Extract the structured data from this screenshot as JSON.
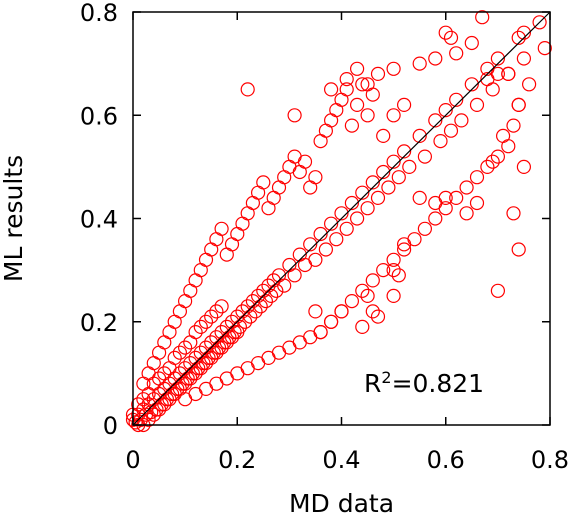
{
  "chart_data": {
    "type": "scatter",
    "xlabel": "MD data",
    "ylabel": "ML results",
    "xlim": [
      0,
      0.8
    ],
    "ylim": [
      0,
      0.8
    ],
    "xticks": [
      "0",
      "0.2",
      "0.4",
      "0.6",
      "0.8"
    ],
    "yticks": [
      "0",
      "0.2",
      "0.4",
      "0.6",
      "0.8"
    ],
    "xtick_values": [
      0,
      0.2,
      0.4,
      0.6,
      0.8
    ],
    "ytick_values": [
      0,
      0.2,
      0.4,
      0.6,
      0.8
    ],
    "annotation": {
      "prefix": "R",
      "superscript": "2",
      "suffix": "=0.821"
    },
    "reference_line": {
      "from": [
        0,
        0
      ],
      "to": [
        0.8,
        0.8
      ],
      "color": "#000000"
    },
    "marker": {
      "shape": "open-circle",
      "color": "#ff0000"
    },
    "grid": false,
    "series": [
      {
        "points": [
          [
            0.01,
            0.02
          ],
          [
            0.015,
            0.01
          ],
          [
            0.02,
            0.03
          ],
          [
            0.025,
            0.02
          ],
          [
            0.03,
            0.04
          ],
          [
            0.035,
            0.025
          ],
          [
            0.04,
            0.05
          ],
          [
            0.045,
            0.03
          ],
          [
            0.05,
            0.06
          ],
          [
            0.055,
            0.04
          ],
          [
            0.06,
            0.07
          ],
          [
            0.065,
            0.05
          ],
          [
            0.07,
            0.08
          ],
          [
            0.075,
            0.06
          ],
          [
            0.08,
            0.09
          ],
          [
            0.085,
            0.07
          ],
          [
            0.09,
            0.1
          ],
          [
            0.095,
            0.08
          ],
          [
            0.1,
            0.11
          ],
          [
            0.105,
            0.09
          ],
          [
            0.11,
            0.12
          ],
          [
            0.115,
            0.1
          ],
          [
            0.12,
            0.13
          ],
          [
            0.125,
            0.11
          ],
          [
            0.13,
            0.14
          ],
          [
            0.135,
            0.12
          ],
          [
            0.14,
            0.15
          ],
          [
            0.145,
            0.13
          ],
          [
            0.15,
            0.16
          ],
          [
            0.155,
            0.14
          ],
          [
            0.16,
            0.17
          ],
          [
            0.165,
            0.15
          ],
          [
            0.17,
            0.18
          ],
          [
            0.175,
            0.16
          ],
          [
            0.18,
            0.19
          ],
          [
            0.185,
            0.17
          ],
          [
            0.19,
            0.2
          ],
          [
            0.195,
            0.18
          ],
          [
            0.2,
            0.21
          ],
          [
            0.205,
            0.19
          ],
          [
            0.21,
            0.22
          ],
          [
            0.215,
            0.2
          ],
          [
            0.22,
            0.23
          ],
          [
            0.225,
            0.21
          ],
          [
            0.23,
            0.24
          ],
          [
            0.235,
            0.22
          ],
          [
            0.24,
            0.25
          ],
          [
            0.245,
            0.23
          ],
          [
            0.25,
            0.26
          ],
          [
            0.255,
            0.24
          ],
          [
            0.26,
            0.27
          ],
          [
            0.265,
            0.25
          ],
          [
            0.27,
            0.28
          ],
          [
            0.275,
            0.26
          ],
          [
            0.28,
            0.29
          ],
          [
            0.29,
            0.27
          ],
          [
            0.3,
            0.31
          ],
          [
            0.31,
            0.29
          ],
          [
            0.32,
            0.33
          ],
          [
            0.33,
            0.31
          ],
          [
            0.34,
            0.35
          ],
          [
            0.35,
            0.32
          ],
          [
            0.36,
            0.37
          ],
          [
            0.37,
            0.34
          ],
          [
            0.38,
            0.39
          ],
          [
            0.39,
            0.36
          ],
          [
            0.4,
            0.41
          ],
          [
            0.41,
            0.38
          ],
          [
            0.42,
            0.43
          ],
          [
            0.43,
            0.4
          ],
          [
            0.44,
            0.45
          ],
          [
            0.45,
            0.42
          ],
          [
            0.46,
            0.47
          ],
          [
            0.47,
            0.44
          ],
          [
            0.48,
            0.49
          ],
          [
            0.49,
            0.46
          ],
          [
            0.5,
            0.51
          ],
          [
            0.51,
            0.48
          ],
          [
            0.52,
            0.53
          ],
          [
            0.53,
            0.5
          ],
          [
            0.55,
            0.56
          ],
          [
            0.56,
            0.52
          ],
          [
            0.58,
            0.59
          ],
          [
            0.59,
            0.55
          ],
          [
            0.6,
            0.61
          ],
          [
            0.61,
            0.57
          ],
          [
            0.62,
            0.63
          ],
          [
            0.63,
            0.59
          ],
          [
            0.65,
            0.66
          ],
          [
            0.66,
            0.62
          ],
          [
            0.68,
            0.69
          ],
          [
            0.69,
            0.65
          ],
          [
            0.7,
            0.71
          ],
          [
            0.72,
            0.68
          ],
          [
            0.74,
            0.75
          ],
          [
            0.75,
            0.71
          ],
          [
            0.005,
            0.005
          ],
          [
            0.01,
            0.0
          ],
          [
            0.0,
            0.01
          ],
          [
            0.02,
            0.0
          ],
          [
            0.0,
            0.02
          ],
          [
            0.03,
            0.01
          ],
          [
            0.01,
            0.04
          ],
          [
            0.04,
            0.02
          ],
          [
            0.02,
            0.05
          ],
          [
            0.05,
            0.03
          ],
          [
            0.03,
            0.06
          ],
          [
            0.06,
            0.04
          ],
          [
            0.04,
            0.08
          ],
          [
            0.07,
            0.05
          ],
          [
            0.05,
            0.09
          ],
          [
            0.08,
            0.06
          ],
          [
            0.06,
            0.1
          ],
          [
            0.09,
            0.07
          ],
          [
            0.07,
            0.11
          ],
          [
            0.1,
            0.08
          ],
          [
            0.08,
            0.13
          ],
          [
            0.11,
            0.09
          ],
          [
            0.09,
            0.14
          ],
          [
            0.12,
            0.1
          ],
          [
            0.1,
            0.15
          ],
          [
            0.13,
            0.11
          ],
          [
            0.11,
            0.16
          ],
          [
            0.14,
            0.12
          ],
          [
            0.12,
            0.18
          ],
          [
            0.15,
            0.13
          ],
          [
            0.13,
            0.19
          ],
          [
            0.16,
            0.14
          ],
          [
            0.14,
            0.2
          ],
          [
            0.17,
            0.15
          ],
          [
            0.15,
            0.21
          ],
          [
            0.18,
            0.16
          ],
          [
            0.16,
            0.22
          ],
          [
            0.19,
            0.17
          ],
          [
            0.17,
            0.23
          ],
          [
            0.2,
            0.18
          ],
          [
            0.02,
            0.08
          ],
          [
            0.03,
            0.1
          ],
          [
            0.04,
            0.12
          ],
          [
            0.05,
            0.14
          ],
          [
            0.06,
            0.16
          ],
          [
            0.07,
            0.18
          ],
          [
            0.08,
            0.2
          ],
          [
            0.09,
            0.22
          ],
          [
            0.1,
            0.24
          ],
          [
            0.11,
            0.26
          ],
          [
            0.12,
            0.28
          ],
          [
            0.13,
            0.3
          ],
          [
            0.14,
            0.32
          ],
          [
            0.15,
            0.34
          ],
          [
            0.16,
            0.36
          ],
          [
            0.17,
            0.38
          ],
          [
            0.18,
            0.33
          ],
          [
            0.19,
            0.35
          ],
          [
            0.2,
            0.37
          ],
          [
            0.21,
            0.39
          ],
          [
            0.22,
            0.41
          ],
          [
            0.23,
            0.43
          ],
          [
            0.24,
            0.45
          ],
          [
            0.25,
            0.47
          ],
          [
            0.26,
            0.42
          ],
          [
            0.27,
            0.44
          ],
          [
            0.28,
            0.46
          ],
          [
            0.29,
            0.48
          ],
          [
            0.3,
            0.5
          ],
          [
            0.31,
            0.52
          ],
          [
            0.32,
            0.49
          ],
          [
            0.33,
            0.51
          ],
          [
            0.34,
            0.46
          ],
          [
            0.35,
            0.48
          ],
          [
            0.36,
            0.55
          ],
          [
            0.37,
            0.57
          ],
          [
            0.38,
            0.59
          ],
          [
            0.39,
            0.61
          ],
          [
            0.4,
            0.63
          ],
          [
            0.41,
            0.65
          ],
          [
            0.42,
            0.58
          ],
          [
            0.43,
            0.62
          ],
          [
            0.44,
            0.66
          ],
          [
            0.45,
            0.6
          ],
          [
            0.46,
            0.64
          ],
          [
            0.47,
            0.68
          ],
          [
            0.48,
            0.56
          ],
          [
            0.5,
            0.6
          ],
          [
            0.1,
            0.05
          ],
          [
            0.12,
            0.06
          ],
          [
            0.14,
            0.07
          ],
          [
            0.16,
            0.08
          ],
          [
            0.18,
            0.09
          ],
          [
            0.2,
            0.1
          ],
          [
            0.22,
            0.11
          ],
          [
            0.24,
            0.12
          ],
          [
            0.26,
            0.13
          ],
          [
            0.28,
            0.14
          ],
          [
            0.3,
            0.15
          ],
          [
            0.32,
            0.16
          ],
          [
            0.34,
            0.17
          ],
          [
            0.36,
            0.18
          ],
          [
            0.38,
            0.2
          ],
          [
            0.4,
            0.22
          ],
          [
            0.42,
            0.24
          ],
          [
            0.44,
            0.26
          ],
          [
            0.46,
            0.28
          ],
          [
            0.48,
            0.3
          ],
          [
            0.5,
            0.32
          ],
          [
            0.52,
            0.34
          ],
          [
            0.54,
            0.36
          ],
          [
            0.56,
            0.38
          ],
          [
            0.58,
            0.4
          ],
          [
            0.6,
            0.42
          ],
          [
            0.62,
            0.44
          ],
          [
            0.64,
            0.46
          ],
          [
            0.66,
            0.48
          ],
          [
            0.68,
            0.5
          ],
          [
            0.7,
            0.52
          ],
          [
            0.72,
            0.54
          ],
          [
            0.22,
            0.65
          ],
          [
            0.31,
            0.6
          ],
          [
            0.38,
            0.65
          ],
          [
            0.41,
            0.67
          ],
          [
            0.43,
            0.69
          ],
          [
            0.45,
            0.66
          ],
          [
            0.5,
            0.69
          ],
          [
            0.52,
            0.62
          ],
          [
            0.55,
            0.7
          ],
          [
            0.58,
            0.71
          ],
          [
            0.6,
            0.76
          ],
          [
            0.61,
            0.75
          ],
          [
            0.62,
            0.72
          ],
          [
            0.65,
            0.74
          ],
          [
            0.67,
            0.79
          ],
          [
            0.68,
            0.67
          ],
          [
            0.7,
            0.68
          ],
          [
            0.72,
            0.68
          ],
          [
            0.74,
            0.62
          ],
          [
            0.75,
            0.76
          ],
          [
            0.76,
            0.66
          ],
          [
            0.78,
            0.78
          ],
          [
            0.79,
            0.73
          ],
          [
            0.73,
            0.58
          ],
          [
            0.74,
            0.62
          ],
          [
            0.71,
            0.56
          ],
          [
            0.69,
            0.51
          ],
          [
            0.75,
            0.5
          ],
          [
            0.73,
            0.41
          ],
          [
            0.74,
            0.34
          ],
          [
            0.7,
            0.26
          ],
          [
            0.64,
            0.41
          ],
          [
            0.66,
            0.43
          ],
          [
            0.6,
            0.44
          ],
          [
            0.58,
            0.43
          ],
          [
            0.55,
            0.44
          ],
          [
            0.52,
            0.35
          ],
          [
            0.5,
            0.3
          ],
          [
            0.51,
            0.29
          ],
          [
            0.5,
            0.25
          ],
          [
            0.47,
            0.21
          ],
          [
            0.44,
            0.19
          ],
          [
            0.45,
            0.25
          ],
          [
            0.46,
            0.22
          ],
          [
            0.4,
            0.22
          ],
          [
            0.38,
            0.2
          ],
          [
            0.36,
            0.18
          ],
          [
            0.35,
            0.22
          ]
        ]
      }
    ]
  }
}
